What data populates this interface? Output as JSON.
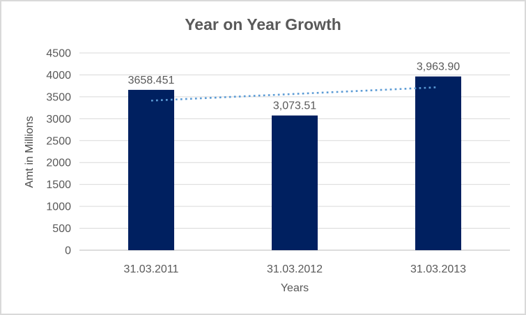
{
  "chart_data": {
    "type": "bar",
    "title": "Year on Year Growth",
    "xlabel": "Years",
    "ylabel": "Amt in Millions",
    "categories": [
      "31.03.2011",
      "31.03.2012",
      "31.03.2013"
    ],
    "values": [
      3658.451,
      3073.51,
      3963.9
    ],
    "data_labels": [
      "3658.451",
      "3,073.51",
      "3,963.90"
    ],
    "ylim": [
      0,
      4500
    ],
    "ytick_step": 500,
    "grid": true,
    "legend": "none",
    "trendline": {
      "type": "linear",
      "style": "dotted",
      "color": "#5B9BD5"
    },
    "colors": {
      "bar": "#002060",
      "gridline": "#D9D9D9",
      "axis_line": "#C6C6C6",
      "text": "#595959",
      "title_text": "#595959",
      "background": "#FFFFFF",
      "border": "#D9D9D9"
    }
  }
}
